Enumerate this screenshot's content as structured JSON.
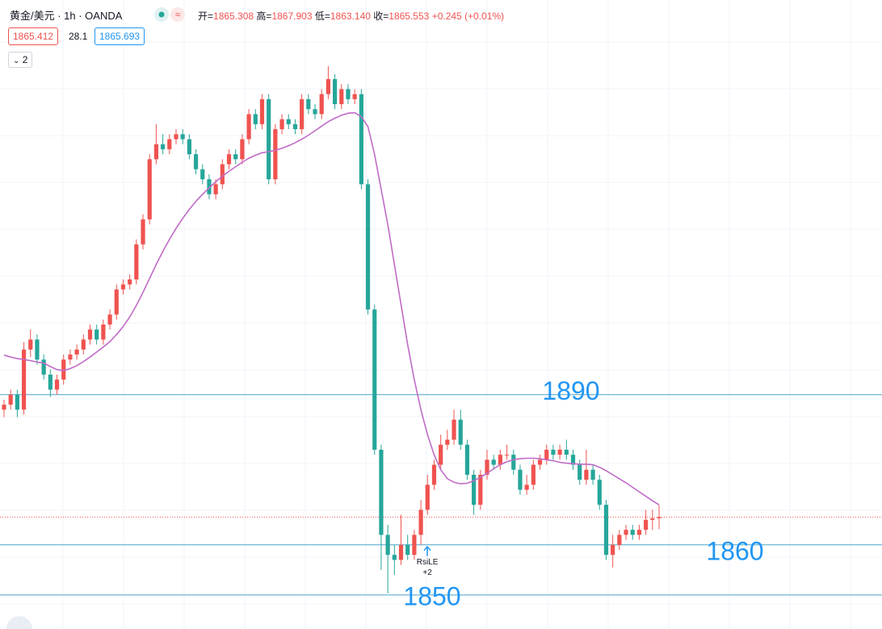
{
  "chart_data": {
    "type": "candlestick",
    "symbol": "黄金/美元 · 1h · OANDA",
    "ohlc_names": [
      "开=",
      "高=",
      "低=",
      "收="
    ],
    "ohlc_value_labels": [
      "1865.308",
      "1867.903",
      "1863.140",
      "1865.553"
    ],
    "change": "+0.245",
    "change_pct": "(+0.01%)",
    "bid": 1865.412,
    "spread": 28.1,
    "ask": 1865.693,
    "indicator_count": 2,
    "up_color": "#ef5350",
    "down_color": "#26a69a",
    "ma_color": "#c06bc7",
    "level_color": "#4aa3c8",
    "ylim": [
      1843.2,
      1968.8
    ],
    "levels": [
      1890,
      1860,
      1850
    ],
    "signal": {
      "index": 63,
      "label": "RsiLE",
      "count": "+2"
    },
    "ohlc": [
      [
        1887,
        1889,
        1885.5,
        1888
      ],
      [
        1888,
        1891,
        1887,
        1890
      ],
      [
        1890,
        1891,
        1885.5,
        1887
      ],
      [
        1887,
        1900.5,
        1886,
        1899
      ],
      [
        1899,
        1903,
        1897.5,
        1901
      ],
      [
        1901,
        1902,
        1896,
        1897
      ],
      [
        1897,
        1898,
        1893,
        1894
      ],
      [
        1894,
        1895,
        1889.5,
        1891
      ],
      [
        1891,
        1894,
        1890,
        1893
      ],
      [
        1893,
        1898,
        1892,
        1897
      ],
      [
        1897,
        1899,
        1896,
        1898
      ],
      [
        1898,
        1900,
        1897,
        1899
      ],
      [
        1899,
        1902,
        1898,
        1901
      ],
      [
        1901,
        1904,
        1900,
        1903
      ],
      [
        1903,
        1904,
        1900,
        1901
      ],
      [
        1901,
        1905,
        1900,
        1904
      ],
      [
        1904,
        1907,
        1903,
        1906
      ],
      [
        1906,
        1912,
        1905,
        1911
      ],
      [
        1911,
        1913,
        1910,
        1912
      ],
      [
        1912,
        1914,
        1911,
        1913
      ],
      [
        1913,
        1921,
        1912,
        1920
      ],
      [
        1920,
        1926,
        1919,
        1925
      ],
      [
        1925,
        1938,
        1924,
        1937
      ],
      [
        1937,
        1944,
        1936,
        1940
      ],
      [
        1940,
        1942,
        1938,
        1939
      ],
      [
        1939,
        1942,
        1938,
        1941
      ],
      [
        1941,
        1943,
        1940,
        1942
      ],
      [
        1942,
        1943,
        1940,
        1941
      ],
      [
        1941,
        1942,
        1937,
        1938
      ],
      [
        1938,
        1939,
        1934,
        1935
      ],
      [
        1935,
        1936,
        1932,
        1933
      ],
      [
        1933,
        1934,
        1929,
        1930
      ],
      [
        1930,
        1933,
        1929,
        1932
      ],
      [
        1932,
        1937,
        1931,
        1936
      ],
      [
        1936,
        1939,
        1935,
        1938
      ],
      [
        1938,
        1939,
        1936,
        1937
      ],
      [
        1937,
        1942,
        1936,
        1941
      ],
      [
        1941,
        1947,
        1940,
        1946
      ],
      [
        1946,
        1947,
        1943,
        1944
      ],
      [
        1944,
        1950,
        1943,
        1949
      ],
      [
        1949,
        1950,
        1932,
        1933
      ],
      [
        1933,
        1944,
        1932,
        1943
      ],
      [
        1943,
        1946,
        1942,
        1945
      ],
      [
        1945,
        1946,
        1943,
        1944
      ],
      [
        1944,
        1945,
        1942,
        1943
      ],
      [
        1943,
        1950,
        1942,
        1949
      ],
      [
        1949,
        1950,
        1946,
        1947
      ],
      [
        1947,
        1948,
        1945,
        1946
      ],
      [
        1946,
        1951,
        1945,
        1950
      ],
      [
        1950,
        1955.6,
        1949,
        1953
      ],
      [
        1953,
        1954,
        1947,
        1948
      ],
      [
        1948,
        1952,
        1947,
        1951
      ],
      [
        1951,
        1952,
        1948,
        1949
      ],
      [
        1949,
        1951,
        1948,
        1950
      ],
      [
        1950,
        1951,
        1931,
        1932
      ],
      [
        1932,
        1933,
        1906,
        1907
      ],
      [
        1907,
        1908,
        1878,
        1879
      ],
      [
        1879,
        1880,
        1855,
        1862
      ],
      [
        1862,
        1864,
        1850.3,
        1858
      ],
      [
        1858,
        1860,
        1854,
        1857
      ],
      [
        1857,
        1866,
        1856,
        1860
      ],
      [
        1860,
        1862,
        1857,
        1858
      ],
      [
        1858,
        1863,
        1857,
        1862
      ],
      [
        1862,
        1869,
        1860,
        1867
      ],
      [
        1867,
        1874,
        1866,
        1872
      ],
      [
        1872,
        1877,
        1871,
        1876
      ],
      [
        1876,
        1882,
        1875,
        1880
      ],
      [
        1880,
        1883,
        1879,
        1881
      ],
      [
        1881,
        1887,
        1880,
        1885
      ],
      [
        1885,
        1887,
        1879,
        1880
      ],
      [
        1880,
        1881,
        1873,
        1874
      ],
      [
        1874,
        1875,
        1866,
        1868
      ],
      [
        1868,
        1875,
        1867,
        1874
      ],
      [
        1874,
        1879,
        1873,
        1877
      ],
      [
        1877,
        1878,
        1875,
        1876
      ],
      [
        1876,
        1879,
        1875,
        1878
      ],
      [
        1878,
        1880,
        1877,
        1878
      ],
      [
        1878,
        1879,
        1874,
        1875
      ],
      [
        1875,
        1876,
        1870,
        1871
      ],
      [
        1871,
        1874,
        1870,
        1872
      ],
      [
        1872,
        1877,
        1871,
        1876
      ],
      [
        1876,
        1878,
        1875,
        1877
      ],
      [
        1877,
        1880,
        1876,
        1879
      ],
      [
        1879,
        1880,
        1877,
        1878
      ],
      [
        1878,
        1880,
        1877,
        1879
      ],
      [
        1879,
        1881,
        1877,
        1878
      ],
      [
        1878,
        1879,
        1875,
        1876
      ],
      [
        1876,
        1877,
        1872,
        1873
      ],
      [
        1873,
        1879,
        1872,
        1875
      ],
      [
        1875,
        1876,
        1872,
        1873
      ],
      [
        1873,
        1874,
        1867,
        1868
      ],
      [
        1868,
        1869,
        1857,
        1858
      ],
      [
        1858,
        1862,
        1855.5,
        1860
      ],
      [
        1860,
        1863,
        1859,
        1862
      ],
      [
        1862,
        1864,
        1861,
        1863
      ],
      [
        1863,
        1864,
        1861,
        1862
      ],
      [
        1862,
        1864,
        1861,
        1863
      ],
      [
        1863,
        1867,
        1862,
        1865
      ],
      [
        1865,
        1867,
        1863,
        1865.308
      ],
      [
        1865.308,
        1867.903,
        1863.14,
        1865.553
      ]
    ],
    "ma": [
      1897.9,
      1897.5,
      1897.2,
      1897,
      1896.8,
      1896.5,
      1896.3,
      1895.6,
      1895,
      1894.8,
      1895.2,
      1895.8,
      1896.6,
      1897.5,
      1898.5,
      1899.5,
      1900.6,
      1902,
      1903.6,
      1905.5,
      1907.8,
      1910.4,
      1913.2,
      1916,
      1918.6,
      1921,
      1923.2,
      1925.2,
      1927,
      1928.6,
      1930,
      1931.3,
      1932.5,
      1933.6,
      1934.6,
      1935.5,
      1936.4,
      1937.2,
      1937.8,
      1938.3,
      1938.5,
      1938.8,
      1939.2,
      1939.7,
      1940.3,
      1941,
      1941.8,
      1942.7,
      1943.6,
      1944.5,
      1945.2,
      1945.8,
      1946.2,
      1946.3,
      1945.5,
      1943.5,
      1938,
      1931,
      1924,
      1916,
      1908,
      1900,
      1893,
      1887,
      1882,
      1878,
      1875,
      1873.2,
      1872.5,
      1872.2,
      1872.3,
      1872.8,
      1873.5,
      1874.3,
      1875.2,
      1876,
      1876.6,
      1877,
      1877.2,
      1877.3,
      1877.3,
      1877.2,
      1877,
      1876.8,
      1876.5,
      1876.3,
      1876.2,
      1876.1,
      1876.1,
      1876,
      1875.5,
      1874.8,
      1874,
      1873.2,
      1872.4,
      1871.5,
      1870.6,
      1869.7,
      1868.8,
      1868
    ]
  }
}
